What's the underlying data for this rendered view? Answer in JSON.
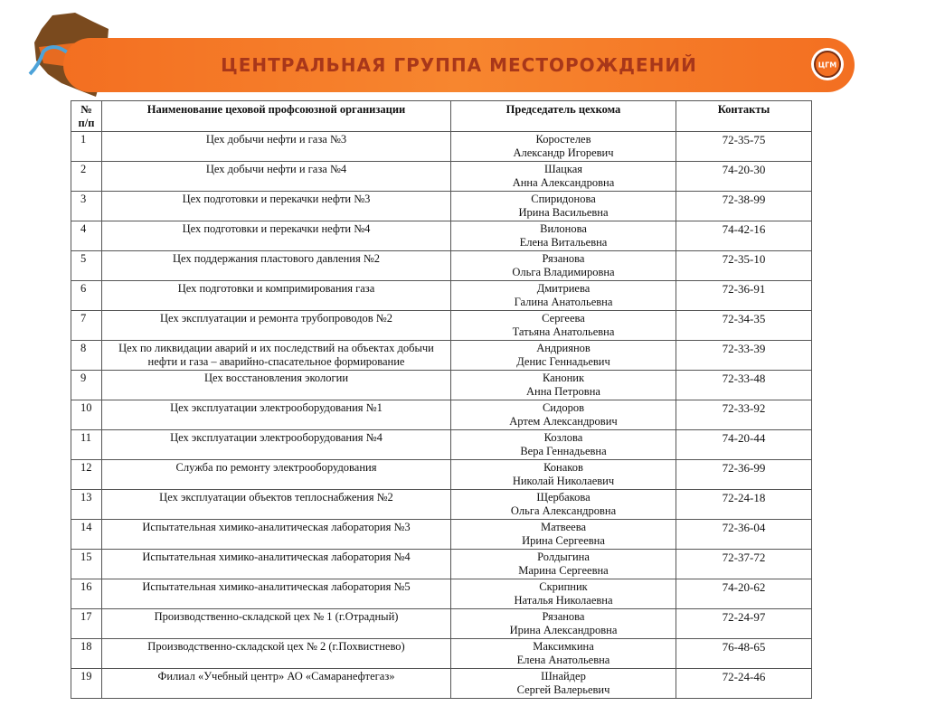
{
  "header": {
    "title": "ЦЕНТРАЛЬНАЯ ГРУППА МЕСТОРОЖДЕНИЙ",
    "logo": "ЦГМ"
  },
  "table": {
    "columns": [
      "№ п/п",
      "Наименование цеховой профсоюзной организации",
      "Председатель цехкома",
      "Контакты"
    ],
    "rows": [
      {
        "num": 1,
        "unit": "Цех добычи нефти и газа №3",
        "chairman": [
          "Коростелев",
          "Александр Игоревич"
        ],
        "phone": "72-35-75"
      },
      {
        "num": 2,
        "unit": "Цех добычи нефти и газа №4",
        "chairman": [
          "Шацкая",
          "Анна Александровна"
        ],
        "phone": "74-20-30"
      },
      {
        "num": 3,
        "unit": "Цех подготовки и перекачки нефти №3",
        "chairman": [
          "Спиридонова",
          "Ирина Васильевна"
        ],
        "phone": "72-38-99"
      },
      {
        "num": 4,
        "unit": "Цех подготовки и перекачки нефти №4",
        "chairman": [
          "Вилонова",
          "Елена Витальевна"
        ],
        "phone": "74-42-16"
      },
      {
        "num": 5,
        "unit": "Цех поддержания пластового давления №2",
        "chairman": [
          "Рязанова",
          "Ольга Владимировна"
        ],
        "phone": "72-35-10"
      },
      {
        "num": 6,
        "unit": "Цех подготовки и компримирования газа",
        "chairman": [
          "Дмитриева",
          "Галина Анатольевна"
        ],
        "phone": "72-36-91"
      },
      {
        "num": 7,
        "unit": "Цех эксплуатации и ремонта трубопроводов №2",
        "chairman": [
          "Сергеева",
          "Татьяна Анатольевна"
        ],
        "phone": "72-34-35"
      },
      {
        "num": 8,
        "unit": "Цех по ликвидации аварий и их последствий на объектах добычи нефти и газа – аварийно-спасательное формирование",
        "chairman": [
          "Андриянов",
          "Денис Геннадьевич"
        ],
        "phone": "72-33-39"
      },
      {
        "num": 9,
        "unit": "Цех восстановления экологии",
        "chairman": [
          "Каноник",
          "Анна Петровна"
        ],
        "phone": "72-33-48"
      },
      {
        "num": 10,
        "unit": "Цех эксплуатации электрооборудования №1",
        "chairman": [
          "Сидоров",
          "Артем Александрович"
        ],
        "phone": "72-33-92"
      },
      {
        "num": 11,
        "unit": "Цех эксплуатации электрооборудования №4",
        "chairman": [
          "Козлова",
          "Вера  Геннадьевна"
        ],
        "phone": "74-20-44"
      },
      {
        "num": 12,
        "unit": "Служба по ремонту электрооборудования",
        "chairman": [
          "Конаков",
          "Николай Николаевич"
        ],
        "phone": "72-36-99"
      },
      {
        "num": 13,
        "unit": "Цех эксплуатации объектов теплоснабжения №2",
        "chairman": [
          "Щербакова",
          "Ольга Александровна"
        ],
        "phone": "72-24-18"
      },
      {
        "num": 14,
        "unit": "Испытательная химико-аналитическая лаборатория №3",
        "chairman": [
          "Матвеева",
          "Ирина Сергеевна"
        ],
        "phone": "72-36-04"
      },
      {
        "num": 15,
        "unit": "Испытательная химико-аналитическая лаборатория №4",
        "chairman": [
          "Ролдыгина",
          "Марина Сергеевна"
        ],
        "phone": "72-37-72"
      },
      {
        "num": 16,
        "unit": "Испытательная химико-аналитическая лаборатория №5",
        "chairman": [
          "Скрипник",
          "Наталья Николаевна"
        ],
        "phone": "74-20-62"
      },
      {
        "num": 17,
        "unit": "Производственно-складской цех № 1 (г.Отрадный)",
        "chairman": [
          "Рязанова",
          "Ирина Александровна"
        ],
        "phone": "72-24-97"
      },
      {
        "num": 18,
        "unit": "Производственно-складской цех № 2 (г.Похвистнево)",
        "chairman": [
          "Максимкина",
          "Елена Анатольевна"
        ],
        "phone": "76-48-65"
      },
      {
        "num": 19,
        "unit": "Филиал «Учебный центр» АО «Самаранефтегаз»",
        "chairman": [
          "Шнайдер",
          "Сергей Валерьевич"
        ],
        "phone": "72-24-46"
      }
    ]
  }
}
